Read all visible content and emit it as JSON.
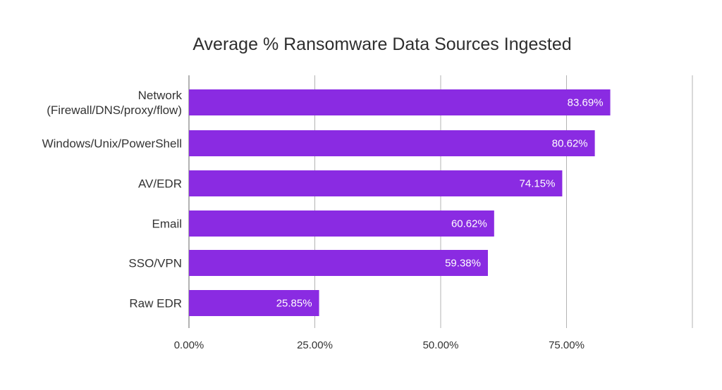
{
  "chart_data": {
    "type": "bar",
    "orientation": "horizontal",
    "title": "Average % Ransomware Data Sources Ingested",
    "categories": [
      [
        "Network",
        "(Firewall/DNS/proxy/flow)"
      ],
      [
        "Windows/Unix/PowerShell"
      ],
      [
        "AV/EDR"
      ],
      [
        "Email"
      ],
      [
        "SSO/VPN"
      ],
      [
        "Raw EDR"
      ]
    ],
    "values": [
      83.69,
      80.62,
      74.15,
      60.62,
      59.38,
      25.85
    ],
    "data_labels": [
      "83.69%",
      "80.62%",
      "74.15%",
      "60.62%",
      "59.38%",
      "25.85%"
    ],
    "xticks": [
      0,
      25,
      50,
      75,
      100
    ],
    "xtick_labels": [
      "0.00%",
      "25.00%",
      "50.00%",
      "75.00%",
      ""
    ],
    "xlim": [
      0,
      100
    ],
    "xlabel": "",
    "ylabel": "",
    "grid": true,
    "bar_color": "#8a2be2",
    "grid_color": "#b3b3b3"
  }
}
